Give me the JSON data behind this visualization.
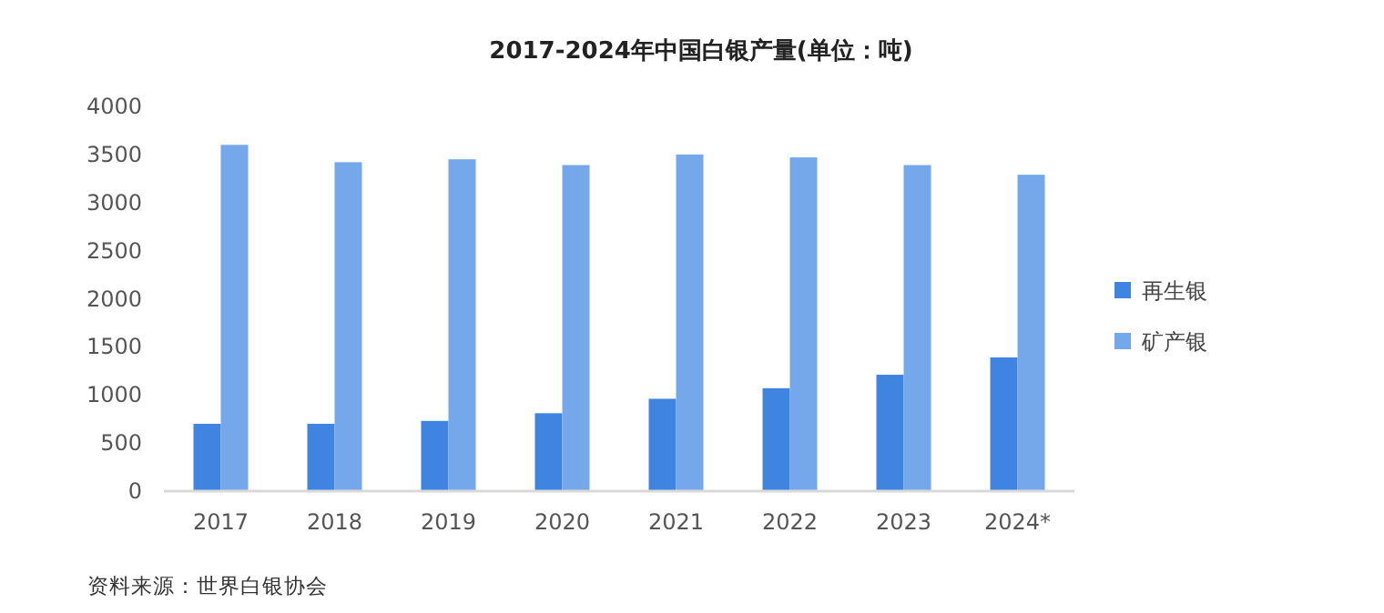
{
  "chart_data": {
    "type": "bar",
    "title": "2017-2024年中国白银产量(单位：吨)",
    "categories": [
      "2017",
      "2018",
      "2019",
      "2020",
      "2021",
      "2022",
      "2023",
      "2024*"
    ],
    "series": [
      {
        "name": "再生银",
        "color": "#3f84e0",
        "values": [
          700,
          700,
          730,
          810,
          960,
          1070,
          1210,
          1390
        ]
      },
      {
        "name": "矿产银",
        "color": "#74a8ea",
        "values": [
          3600,
          3420,
          3450,
          3390,
          3500,
          3470,
          3390,
          3290
        ]
      }
    ],
    "ylim": [
      0,
      4000
    ],
    "yticks": [
      0,
      500,
      1000,
      1500,
      2000,
      2500,
      3000,
      3500,
      4000
    ],
    "grid": false,
    "legend": "right",
    "annotations": [
      "资料来源：世界白银协会"
    ]
  }
}
